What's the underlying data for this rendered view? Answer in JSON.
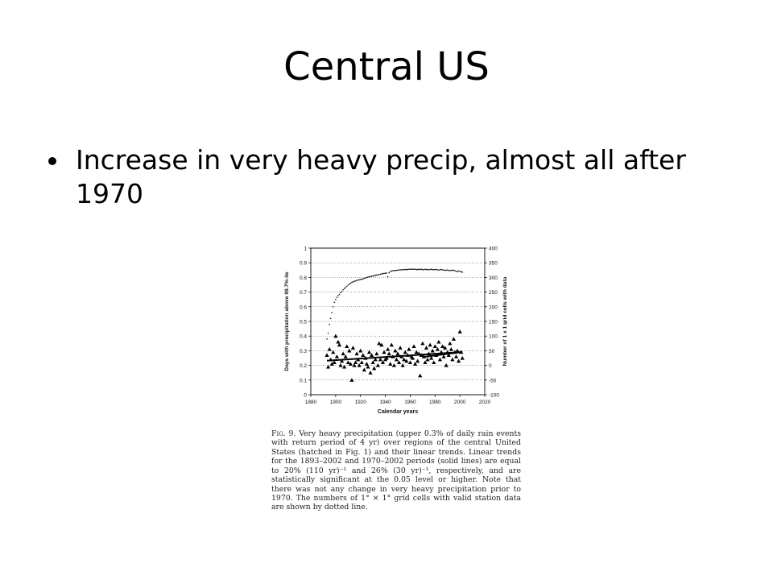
{
  "slide": {
    "title": "Central US",
    "bullets": [
      "Increase in very heavy precip, almost all after 1970"
    ]
  },
  "figure_caption": {
    "label": "Fig. 9.",
    "text": "Very heavy precipitation (upper 0.3% of daily rain events with return period of 4 yr) over regions of the central United States (hatched in Fig. 1) and their linear trends. Linear trends for the 1893–2002 and 1970–2002 periods (solid lines) are equal to 20% (110 yr)⁻¹ and 26% (30 yr)⁻¹, respectively, and are statistically significant at the 0.05 level or higher. Note that there was not any change in very heavy precipitation prior to 1970. The numbers of 1° × 1° grid cells with valid station data are shown by dotted line."
  },
  "chart_data": {
    "type": "scatter",
    "xlabel": "Calendar years",
    "ylabel": "Days with precipitation above 99.7%-ile",
    "y2label": "Number of 1 x 1 grid cells with data",
    "xlim": [
      1880,
      2020
    ],
    "ylim": [
      0,
      1
    ],
    "y2lim": [
      -100,
      400
    ],
    "xticks": [
      "1880",
      "1900",
      "1920",
      "1940",
      "1960",
      "1980",
      "2000",
      "2020"
    ],
    "yticks": [
      "0",
      "0.1",
      "0.2",
      "0.3",
      "0.4",
      "0.5",
      "0.6",
      "0.7",
      "0.8",
      "0.9",
      "1"
    ],
    "y2ticks": [
      "-100",
      "-50",
      "0",
      "50",
      "100",
      "150",
      "200",
      "250",
      "300",
      "350",
      "400"
    ],
    "grid": true,
    "series": [
      {
        "marker": "triangle",
        "x": [
          1893,
          1894,
          1895,
          1896,
          1897,
          1898,
          1899,
          1900,
          1901,
          1902,
          1903,
          1904,
          1905,
          1906,
          1907,
          1908,
          1909,
          1910,
          1911,
          1912,
          1913,
          1914,
          1915,
          1916,
          1917,
          1918,
          1919,
          1920,
          1921,
          1922,
          1923,
          1924,
          1925,
          1926,
          1927,
          1928,
          1929,
          1930,
          1931,
          1932,
          1933,
          1934,
          1935,
          1936,
          1937,
          1938,
          1939,
          1940,
          1941,
          1942,
          1943,
          1944,
          1945,
          1946,
          1947,
          1948,
          1949,
          1950,
          1951,
          1952,
          1953,
          1954,
          1955,
          1956,
          1957,
          1958,
          1959,
          1960,
          1961,
          1962,
          1963,
          1964,
          1965,
          1966,
          1967,
          1968,
          1969,
          1970,
          1971,
          1972,
          1973,
          1974,
          1975,
          1976,
          1977,
          1978,
          1979,
          1980,
          1981,
          1982,
          1983,
          1984,
          1985,
          1986,
          1987,
          1988,
          1989,
          1990,
          1991,
          1992,
          1993,
          1994,
          1995,
          1996,
          1997,
          1998,
          1999,
          2000,
          2001,
          2002
        ],
        "values": [
          0.27,
          0.19,
          0.31,
          0.24,
          0.21,
          0.29,
          0.22,
          0.4,
          0.26,
          0.36,
          0.34,
          0.2,
          0.23,
          0.28,
          0.19,
          0.26,
          0.33,
          0.22,
          0.3,
          0.21,
          0.1,
          0.32,
          0.2,
          0.22,
          0.28,
          0.24,
          0.2,
          0.3,
          0.22,
          0.27,
          0.17,
          0.25,
          0.21,
          0.19,
          0.29,
          0.15,
          0.27,
          0.22,
          0.18,
          0.24,
          0.28,
          0.2,
          0.35,
          0.24,
          0.34,
          0.22,
          0.29,
          0.24,
          0.25,
          0.31,
          0.28,
          0.21,
          0.34,
          0.26,
          0.2,
          0.3,
          0.24,
          0.28,
          0.22,
          0.32,
          0.26,
          0.2,
          0.24,
          0.29,
          0.23,
          0.27,
          0.31,
          0.22,
          0.26,
          0.25,
          0.33,
          0.21,
          0.29,
          0.23,
          0.28,
          0.13,
          0.27,
          0.35,
          0.26,
          0.22,
          0.32,
          0.24,
          0.28,
          0.34,
          0.25,
          0.3,
          0.22,
          0.33,
          0.27,
          0.31,
          0.36,
          0.24,
          0.29,
          0.33,
          0.26,
          0.32,
          0.2,
          0.29,
          0.27,
          0.35,
          0.31,
          0.24,
          0.38,
          0.29,
          0.26,
          0.3,
          0.23,
          0.43,
          0.29,
          0.25
        ]
      },
      {
        "marker": "dot",
        "axis": "right",
        "x": [
          1893,
          1894,
          1895,
          1896,
          1897,
          1898,
          1899,
          1900,
          1901,
          1902,
          1903,
          1904,
          1905,
          1906,
          1907,
          1908,
          1909,
          1910,
          1911,
          1912,
          1913,
          1914,
          1915,
          1916,
          1917,
          1918,
          1919,
          1920,
          1921,
          1922,
          1923,
          1924,
          1925,
          1926,
          1927,
          1928,
          1929,
          1930,
          1931,
          1932,
          1933,
          1934,
          1935,
          1936,
          1937,
          1938,
          1939,
          1940,
          1941,
          1942,
          1943,
          1944,
          1945,
          1946,
          1947,
          1948,
          1949,
          1950,
          1951,
          1952,
          1953,
          1954,
          1955,
          1956,
          1957,
          1958,
          1959,
          1960,
          1961,
          1962,
          1963,
          1964,
          1965,
          1966,
          1967,
          1968,
          1969,
          1970,
          1971,
          1972,
          1973,
          1974,
          1975,
          1976,
          1977,
          1978,
          1979,
          1980,
          1981,
          1982,
          1983,
          1984,
          1985,
          1986,
          1987,
          1988,
          1989,
          1990,
          1991,
          1992,
          1993,
          1994,
          1995,
          1996,
          1997,
          1998,
          1999,
          2000,
          2001,
          2002
        ],
        "values": [
          90,
          110,
          140,
          160,
          180,
          200,
          215,
          225,
          232,
          238,
          242,
          248,
          253,
          258,
          262,
          266,
          270,
          274,
          277,
          280,
          283,
          285,
          287,
          288,
          290,
          291,
          292,
          293,
          294,
          295,
          297,
          298,
          300,
          301,
          302,
          303,
          304,
          305,
          306,
          307,
          308,
          309,
          310,
          311,
          312,
          313,
          314,
          314,
          315,
          302,
          316,
          320,
          322,
          323,
          323,
          324,
          324,
          325,
          325,
          326,
          326,
          326,
          327,
          327,
          327,
          327,
          328,
          328,
          328,
          328,
          328,
          328,
          327,
          327,
          328,
          327,
          328,
          327,
          326,
          328,
          327,
          327,
          326,
          327,
          328,
          327,
          326,
          327,
          327,
          326,
          325,
          326,
          327,
          326,
          325,
          324,
          325,
          325,
          324,
          323,
          324,
          325,
          324,
          323,
          321,
          320,
          322,
          321,
          319,
          318
        ]
      }
    ],
    "trend_lines": [
      {
        "x": [
          1893,
          2002
        ],
        "values": [
          0.232,
          0.291
        ]
      },
      {
        "x": [
          1970,
          2002
        ],
        "values": [
          0.257,
          0.292
        ]
      }
    ]
  }
}
